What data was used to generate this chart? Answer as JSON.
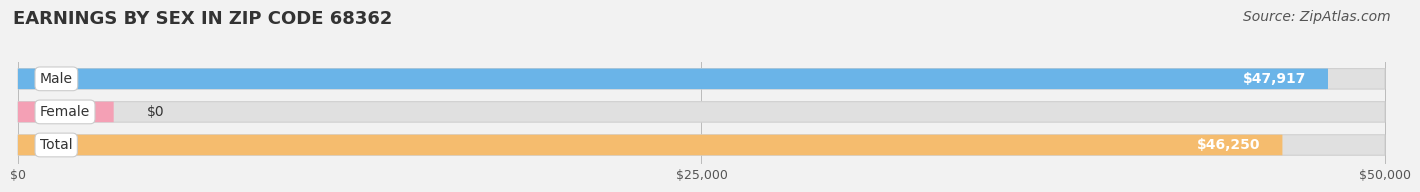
{
  "title": "EARNINGS BY SEX IN ZIP CODE 68362",
  "source": "Source: ZipAtlas.com",
  "categories": [
    "Male",
    "Female",
    "Total"
  ],
  "values": [
    47917,
    0,
    46250
  ],
  "max_value": 50000,
  "bar_colors": [
    "#6ab4e8",
    "#f4a0b5",
    "#f5bc6e"
  ],
  "value_labels": [
    "$47,917",
    "$0",
    "$46,250"
  ],
  "x_ticks": [
    0,
    25000,
    50000
  ],
  "x_tick_labels": [
    "$0",
    "$25,000",
    "$50,000"
  ],
  "background_color": "#f2f2f2",
  "bar_bg_color": "#e0e0e0",
  "bar_bg_edge": "#d0d0d0",
  "title_fontsize": 13,
  "source_fontsize": 10,
  "label_fontsize": 10,
  "value_fontsize": 10,
  "tick_fontsize": 9,
  "bar_height": 0.62,
  "female_stub": 3500
}
